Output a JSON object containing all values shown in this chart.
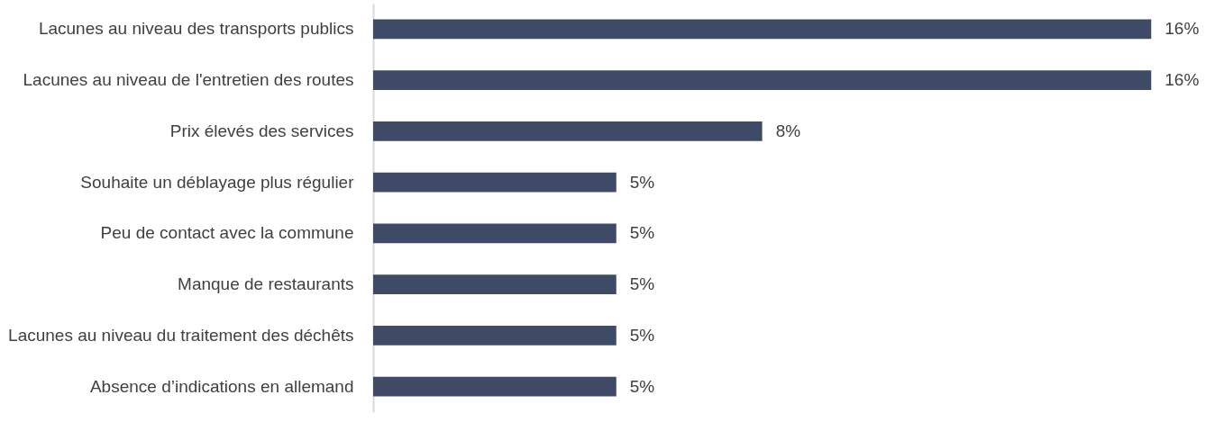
{
  "chart_data": {
    "type": "bar",
    "orientation": "horizontal",
    "categories": [
      "Lacunes au niveau des transports publics",
      "Lacunes au niveau de l'entretien des routes",
      "Prix élevés des services",
      "Souhaite un déblayage plus régulier",
      "Peu de contact avec la commune",
      "Manque de restaurants",
      "Lacunes au niveau du traitement des déchêts",
      "Absence d’indications en allemand"
    ],
    "values": [
      16,
      16,
      8,
      5,
      5,
      5,
      5,
      5
    ],
    "value_labels": [
      "16%",
      "16%",
      "8%",
      "5%",
      "5%",
      "5%",
      "5%",
      "5%"
    ],
    "color": "#3e4a66",
    "grid": false
  }
}
